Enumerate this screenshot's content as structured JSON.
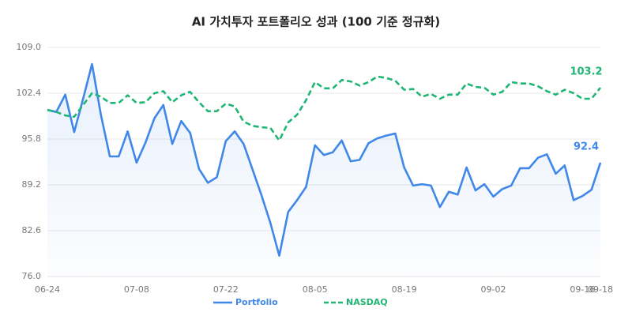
{
  "chart_data": {
    "type": "line",
    "title": "AI 가치투자 포트폴리오 성과 (100 기준 정규화)",
    "categories": [
      "06-24",
      null,
      null,
      null,
      null,
      null,
      null,
      null,
      null,
      null,
      "07-08",
      null,
      null,
      null,
      null,
      null,
      null,
      null,
      null,
      null,
      "07-22",
      null,
      null,
      null,
      null,
      null,
      null,
      null,
      null,
      null,
      "08-05",
      null,
      null,
      null,
      null,
      null,
      null,
      null,
      null,
      null,
      "08-19",
      null,
      null,
      null,
      null,
      null,
      null,
      null,
      null,
      null,
      "09-02",
      null,
      null,
      null,
      null,
      null,
      null,
      null,
      null,
      null,
      "09-16",
      null,
      "09-18"
    ],
    "series": [
      {
        "name": "Portfolio",
        "color": "#3f87e8",
        "style": "solid",
        "fill": true,
        "values": [
          100.0,
          99.7,
          102.2,
          96.8,
          101.6,
          106.6,
          99.3,
          93.3,
          93.3,
          96.9,
          92.4,
          95.3,
          98.8,
          100.7,
          95.1,
          98.4,
          96.7,
          91.5,
          89.5,
          90.3,
          95.5,
          96.9,
          95.1,
          91.4,
          87.7,
          83.7,
          79.0,
          85.3,
          87.0,
          88.9,
          94.9,
          93.5,
          93.9,
          95.6,
          92.6,
          92.8,
          95.2,
          95.9,
          96.3,
          96.6,
          91.7,
          89.1,
          89.3,
          89.1,
          86.0,
          88.2,
          87.8,
          91.7,
          88.4,
          89.3,
          87.5,
          88.6,
          89.1,
          91.6,
          91.6,
          93.1,
          93.6,
          90.8,
          92.0,
          87.0,
          87.6,
          88.5,
          92.4
        ]
      },
      {
        "name": "NASDAQ",
        "color": "#1fb574",
        "style": "dashed",
        "fill": false,
        "values": [
          100.0,
          99.7,
          99.2,
          99.0,
          100.7,
          102.4,
          101.9,
          101.0,
          101.0,
          102.1,
          101.0,
          101.1,
          102.4,
          102.7,
          101.1,
          102.1,
          102.6,
          101.1,
          99.8,
          99.8,
          100.9,
          100.5,
          98.3,
          97.7,
          97.5,
          97.4,
          95.6,
          98.2,
          99.3,
          101.4,
          104.0,
          103.1,
          103.1,
          104.3,
          104.1,
          103.5,
          104.0,
          104.8,
          104.6,
          104.2,
          102.9,
          103.0,
          101.9,
          102.3,
          101.6,
          102.2,
          102.2,
          103.8,
          103.3,
          103.2,
          102.2,
          102.6,
          104.0,
          103.8,
          103.8,
          103.4,
          102.7,
          102.2,
          102.9,
          102.4,
          101.6,
          101.6,
          103.2
        ]
      }
    ],
    "ylim": [
      76.0,
      109.0
    ],
    "yticks": [
      {
        "value": 76.0,
        "label": "76.0"
      },
      {
        "value": 82.6,
        "label": "82.6"
      },
      {
        "value": 89.2,
        "label": "89.2"
      },
      {
        "value": 95.8,
        "label": "95.8"
      },
      {
        "value": 102.4,
        "label": "102.4"
      },
      {
        "value": 109.0,
        "label": "109.0"
      }
    ],
    "grid": true,
    "legend": "bottom"
  }
}
